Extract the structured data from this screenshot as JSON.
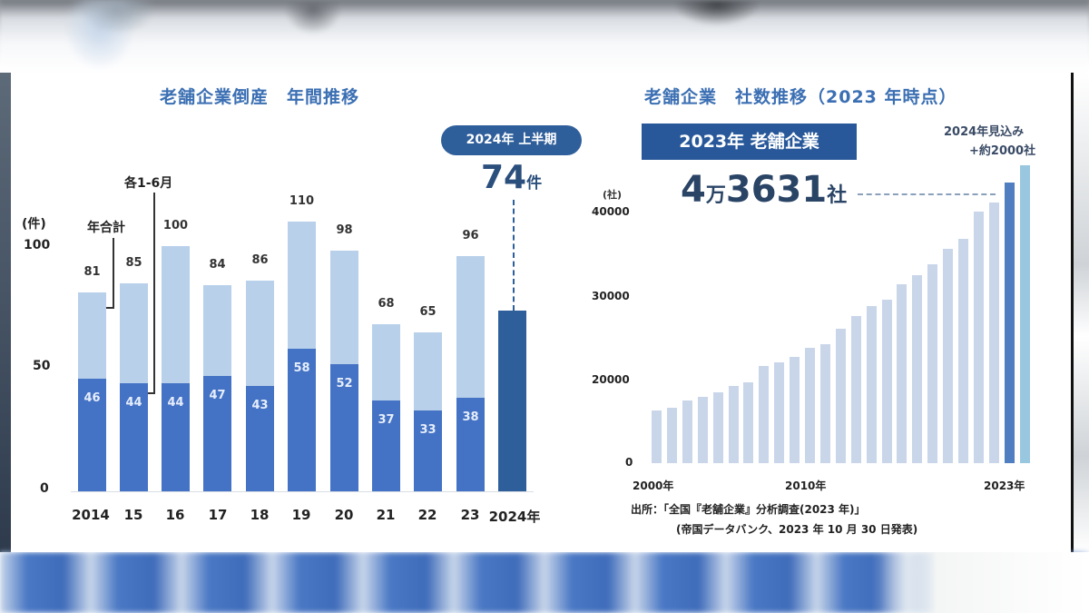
{
  "left_chart": {
    "title": "老舗企業倒産　年間推移",
    "y_unit": "(件)",
    "y_ticks": [
      "100",
      "50",
      "0"
    ],
    "annotation_total": "年合計",
    "annotation_half": "各1-6月",
    "highlight_pill": "2024年 上半期",
    "highlight_value": "74",
    "highlight_unit": "件",
    "x_labels": [
      "2014",
      "15",
      "16",
      "17",
      "18",
      "19",
      "20",
      "21",
      "22",
      "23",
      "2024年"
    ],
    "totals": [
      "81",
      "85",
      "100",
      "84",
      "86",
      "110",
      "98",
      "68",
      "65",
      "96"
    ],
    "halves": [
      "46",
      "44",
      "44",
      "47",
      "43",
      "58",
      "52",
      "37",
      "33",
      "38"
    ]
  },
  "right_chart": {
    "title": "老舗企業　社数推移（2023 年時点）",
    "box_label": "2023年 老舗企業",
    "big_value_prefix": "4",
    "big_value_man": "万",
    "big_value_rest": "3631",
    "big_value_unit": "社",
    "forecast_line1": "2024年見込み",
    "forecast_line2": "+約2000社",
    "y_unit": "(社)",
    "y_ticks": [
      "40000",
      "30000",
      "20000",
      "0"
    ],
    "x_labels": [
      "2000年",
      "2010年",
      "2023年"
    ],
    "source_line1": "出所：「全国『老舗企業』分析調査(2023 年)」",
    "source_line2": "(帝国データバンク、2023 年 10 月 30 日発表)"
  },
  "colors": {
    "title_blue": "#3b6fb3",
    "bar_total": "#b8d0ea",
    "bar_half": "#4472c4",
    "bar_2024": "#2f5f9b",
    "right_bar": "#c9d6ea",
    "right_bar_2023": "#4f7fc0",
    "right_bar_2024": "#99c7e0"
  },
  "chart_data": [
    {
      "type": "bar",
      "title": "老舗企業倒産　年間推移",
      "xlabel": "",
      "ylabel": "(件)",
      "ylim": [
        0,
        110
      ],
      "categories": [
        "2014",
        "2015",
        "2016",
        "2017",
        "2018",
        "2019",
        "2020",
        "2021",
        "2022",
        "2023",
        "2024"
      ],
      "series": [
        {
          "name": "年合計",
          "values": [
            81,
            85,
            100,
            84,
            86,
            110,
            98,
            68,
            65,
            96,
            null
          ]
        },
        {
          "name": "各1-6月",
          "values": [
            46,
            44,
            44,
            47,
            43,
            58,
            52,
            37,
            33,
            38,
            74
          ]
        }
      ],
      "annotations": [
        "2024年 上半期 74件"
      ],
      "grid": false,
      "legend": "inline annotations"
    },
    {
      "type": "bar",
      "title": "老舗企業　社数推移（2023 年時点）",
      "xlabel": "",
      "ylabel": "(社)",
      "ylim": [
        0,
        45000
      ],
      "categories": [
        "2000",
        "2001",
        "2002",
        "2003",
        "2004",
        "2005",
        "2006",
        "2007",
        "2008",
        "2009",
        "2010",
        "2011",
        "2012",
        "2013",
        "2014",
        "2015",
        "2016",
        "2017",
        "2018",
        "2019",
        "2020",
        "2021",
        "2022",
        "2023",
        "2024見込み"
      ],
      "values": [
        16300,
        16600,
        17500,
        17900,
        18500,
        19200,
        19700,
        21600,
        22100,
        22700,
        23800,
        24200,
        26100,
        27600,
        28800,
        29600,
        31400,
        32500,
        33800,
        35700,
        36800,
        40100,
        41200,
        43631,
        45600
      ],
      "annotations": [
        "2023年 老舗企業 4万3631社",
        "2024年見込み +約2000社"
      ],
      "x_tick_labels": [
        "2000年",
        "2010年",
        "2023年"
      ],
      "grid": false
    }
  ]
}
